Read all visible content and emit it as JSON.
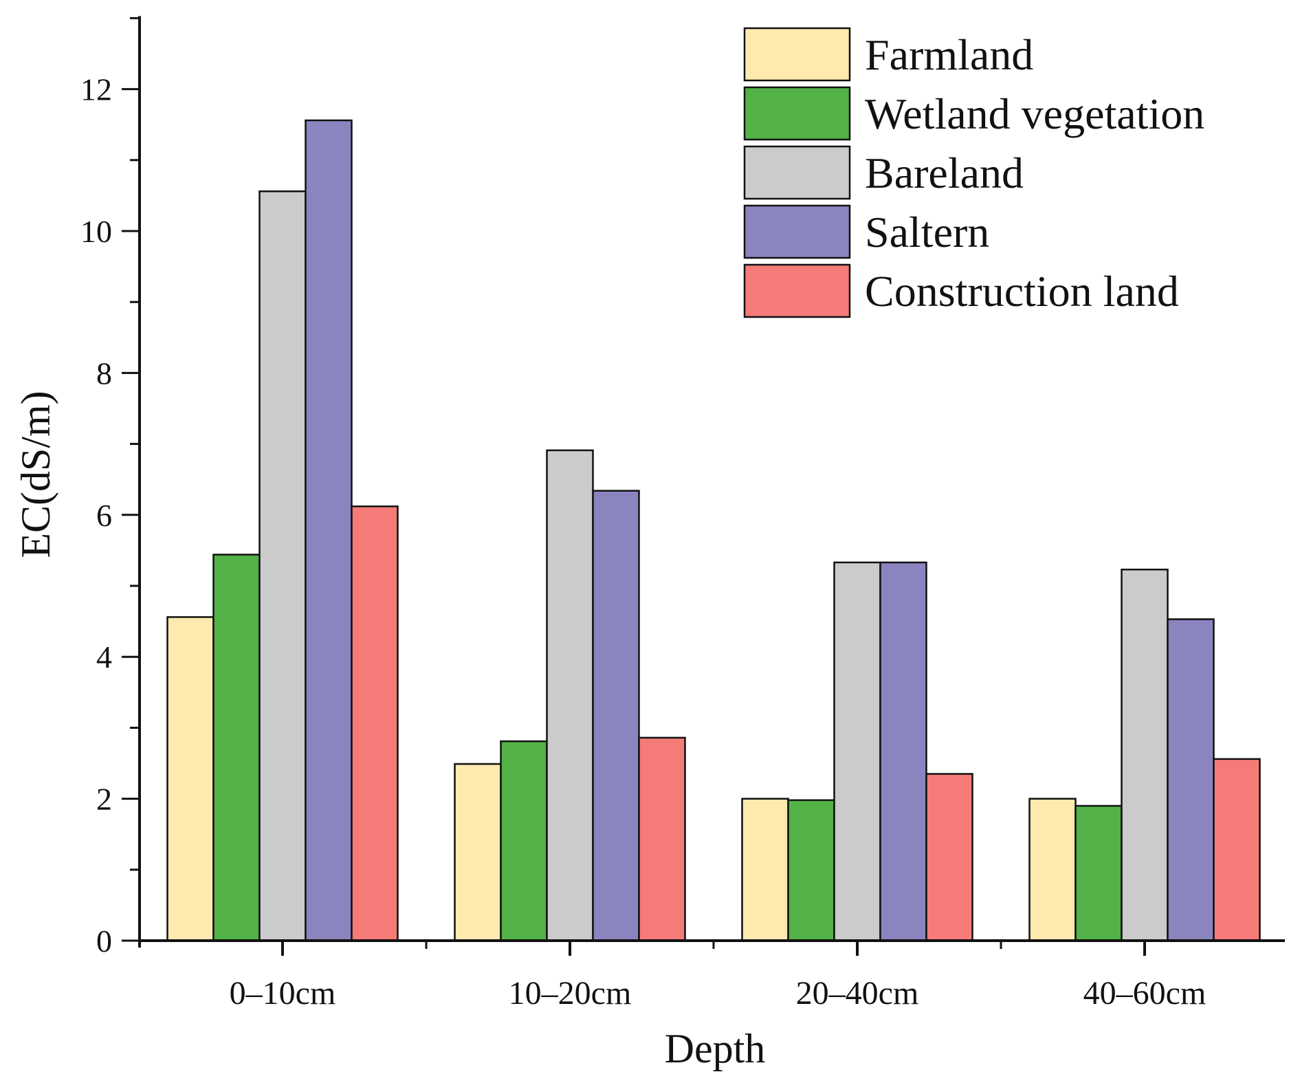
{
  "chart_data": {
    "type": "bar",
    "title": "",
    "xlabel": "Depth",
    "ylabel": "EC(dS/m)",
    "ylim": [
      0,
      13
    ],
    "yticks": [
      0,
      2,
      4,
      6,
      8,
      10,
      12
    ],
    "grid": false,
    "legend_position": "top-right",
    "categories": [
      "0–10cm",
      "10–20cm",
      "20–40cm",
      "40–60cm"
    ],
    "series": [
      {
        "name": "Farmland",
        "color": "#FEEAAF",
        "values": [
          4.56,
          2.49,
          2.0,
          2.0
        ]
      },
      {
        "name": "Wetland vegetation",
        "color": "#52B246",
        "values": [
          5.44,
          2.81,
          1.98,
          1.9
        ]
      },
      {
        "name": "Bareland",
        "color": "#CBCBCB",
        "values": [
          10.56,
          6.91,
          5.33,
          5.23
        ]
      },
      {
        "name": "Saltern",
        "color": "#8A84BF",
        "values": [
          11.56,
          6.34,
          5.33,
          4.53
        ]
      },
      {
        "name": "Construction land",
        "color": "#F47B77",
        "values": [
          6.12,
          2.86,
          2.35,
          2.56
        ]
      }
    ]
  }
}
